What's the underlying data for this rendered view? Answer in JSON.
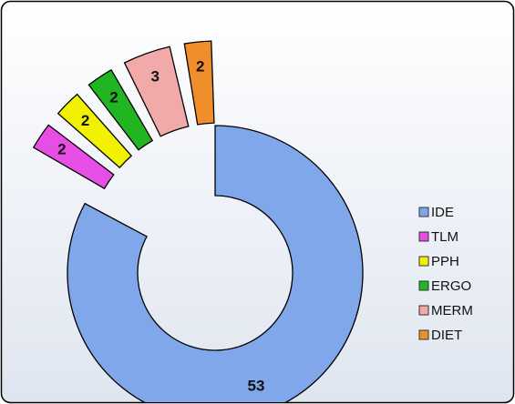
{
  "chart_data": {
    "type": "donut",
    "categories": [
      "IDE",
      "TLM",
      "PPH",
      "ERGO",
      "MERM",
      "DIET"
    ],
    "values": [
      53,
      2,
      2,
      2,
      3,
      2
    ],
    "colors": [
      "#7fa7ea",
      "#e64ee6",
      "#f2f200",
      "#22b522",
      "#f2a9a9",
      "#f08e2c"
    ],
    "legend": "right"
  }
}
